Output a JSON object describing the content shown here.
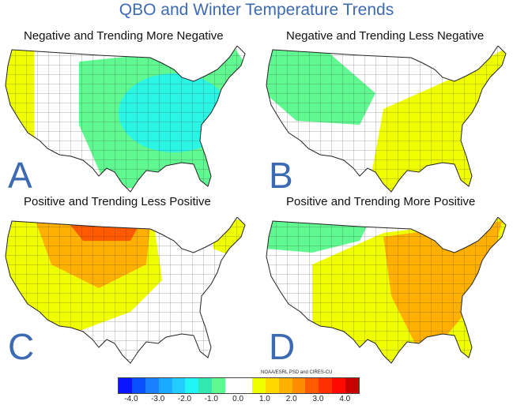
{
  "title": "QBO and Winter Temperature Trends",
  "panels": [
    {
      "letter": "A",
      "title": "Negative and Trending More Negative"
    },
    {
      "letter": "B",
      "title": "Negative and Trending Less Negative"
    },
    {
      "letter": "C",
      "title": "Positive and Trending Less Positive"
    },
    {
      "letter": "D",
      "title": "Positive and Trending More Positive"
    }
  ],
  "colorbar": {
    "colors": [
      "#0a14ff",
      "#0a50ff",
      "#1a80ff",
      "#1aaaff",
      "#22ccff",
      "#22f5f5",
      "#33e8b0",
      "#60f890",
      "#ffffff",
      "#ffffff",
      "#f0ff00",
      "#ffd800",
      "#ffb000",
      "#ff8c00",
      "#ff5a00",
      "#ff3000",
      "#ff0a00",
      "#c80000"
    ],
    "labels": [
      "-4.0",
      "-3.0",
      "-2.0",
      "-1.0",
      "0.0",
      "1.0",
      "2.0",
      "3.0",
      "4.0"
    ],
    "credit": "NOAA/ESRL PSD and CIRES-CU"
  }
}
